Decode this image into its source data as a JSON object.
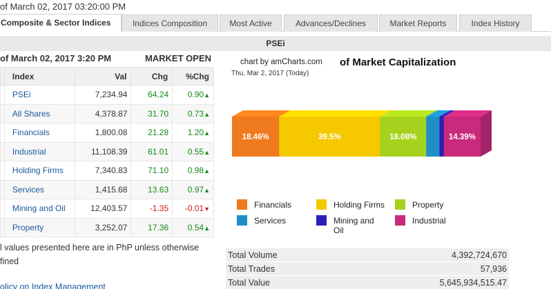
{
  "timestamp": "of March 02, 2017 03:20:00 PM",
  "tabs": [
    {
      "label": "Composite & Sector Indices",
      "active": true
    },
    {
      "label": "Indices Composition"
    },
    {
      "label": "Most Active"
    },
    {
      "label": "Advances/Declines"
    },
    {
      "label": "Market Reports"
    },
    {
      "label": "Index History"
    }
  ],
  "index_name": "PSEi",
  "table": {
    "date": "of March 02, 2017 3:20 PM",
    "status": "MARKET OPEN",
    "columns": [
      "Index",
      "Val",
      "Chg",
      "%Chg"
    ],
    "rows": [
      {
        "index": "PSEi",
        "val": "7,234.94",
        "chg": "64.24",
        "pchg": "0.90",
        "dir": "up"
      },
      {
        "index": "All Shares",
        "val": "4,378.87",
        "chg": "31.70",
        "pchg": "0.73",
        "dir": "up"
      },
      {
        "index": "Financials",
        "val": "1,800.08",
        "chg": "21.28",
        "pchg": "1.20",
        "dir": "up"
      },
      {
        "index": "Industrial",
        "val": "11,108.39",
        "chg": "61.01",
        "pchg": "0.55",
        "dir": "up"
      },
      {
        "index": "Holding Firms",
        "val": "7,340.83",
        "chg": "71.10",
        "pchg": "0.98",
        "dir": "up"
      },
      {
        "index": "Services",
        "val": "1,415.68",
        "chg": "13.63",
        "pchg": "0.97",
        "dir": "up"
      },
      {
        "index": "Mining and Oil",
        "val": "12,403.57",
        "chg": "-1.35",
        "pchg": "-0.01",
        "dir": "down"
      },
      {
        "index": "Property",
        "val": "3,252.07",
        "chg": "17.36",
        "pchg": "0.54",
        "dir": "up"
      }
    ]
  },
  "footnote": "l values presented here are in PhP unless otherwise fined",
  "policy_link": "olicy on Index Management",
  "chart": {
    "credit": "chart by amCharts.com",
    "title": "of Market Capitalization",
    "date": "Thu, Mar 2, 2017 (Today)"
  },
  "chart_data": {
    "type": "bar",
    "categories": [
      "Financials",
      "Holding Firms",
      "Property",
      "Services",
      "Mining and Oil",
      "Industrial"
    ],
    "values": [
      18.46,
      39.5,
      18.08,
      5.2,
      1.7,
      14.39
    ],
    "labels": [
      "18.46%",
      "39.5%",
      "18.08%",
      "",
      "",
      "14.39%"
    ],
    "colors": [
      "#f07a1e",
      "#f5c800",
      "#a6d21d",
      "#1f8fc6",
      "#2a1fb8",
      "#c82a7c"
    ],
    "title": "of Market Capitalization",
    "legend": "bottom"
  },
  "stats": [
    {
      "label": "Total Volume",
      "value": "4,392,724,670"
    },
    {
      "label": "Total Trades",
      "value": "57,936"
    },
    {
      "label": "Total Value",
      "value": "5,645,934,515.47"
    }
  ],
  "colors": {
    "positive": "#138a18",
    "negative": "#d11a1a",
    "link": "#1a5a9a"
  }
}
